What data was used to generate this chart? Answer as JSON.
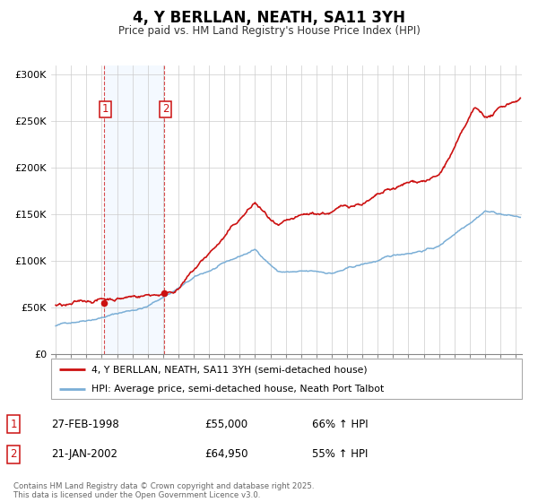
{
  "title": "4, Y BERLLAN, NEATH, SA11 3YH",
  "subtitle": "Price paid vs. HM Land Registry's House Price Index (HPI)",
  "ylim": [
    0,
    310000
  ],
  "yticks": [
    0,
    50000,
    100000,
    150000,
    200000,
    250000,
    300000
  ],
  "ytick_labels": [
    "£0",
    "£50K",
    "£100K",
    "£150K",
    "£200K",
    "£250K",
    "£300K"
  ],
  "grid_color": "#cccccc",
  "sale1_date_x": 1998.15,
  "sale1_price": 55000,
  "sale2_date_x": 2002.055,
  "sale2_price": 64950,
  "hpi_color": "#7aaed6",
  "price_color": "#cc1111",
  "shade_color": "#ddeeff",
  "footer_text": "Contains HM Land Registry data © Crown copyright and database right 2025.\nThis data is licensed under the Open Government Licence v3.0.",
  "legend1_label": "4, Y BERLLAN, NEATH, SA11 3YH (semi-detached house)",
  "legend2_label": "HPI: Average price, semi-detached house, Neath Port Talbot",
  "table_row1": [
    "1",
    "27-FEB-1998",
    "£55,000",
    "66% ↑ HPI"
  ],
  "table_row2": [
    "2",
    "21-JAN-2002",
    "£64,950",
    "55% ↑ HPI"
  ],
  "xmin": 1994.7,
  "xmax": 2025.4
}
